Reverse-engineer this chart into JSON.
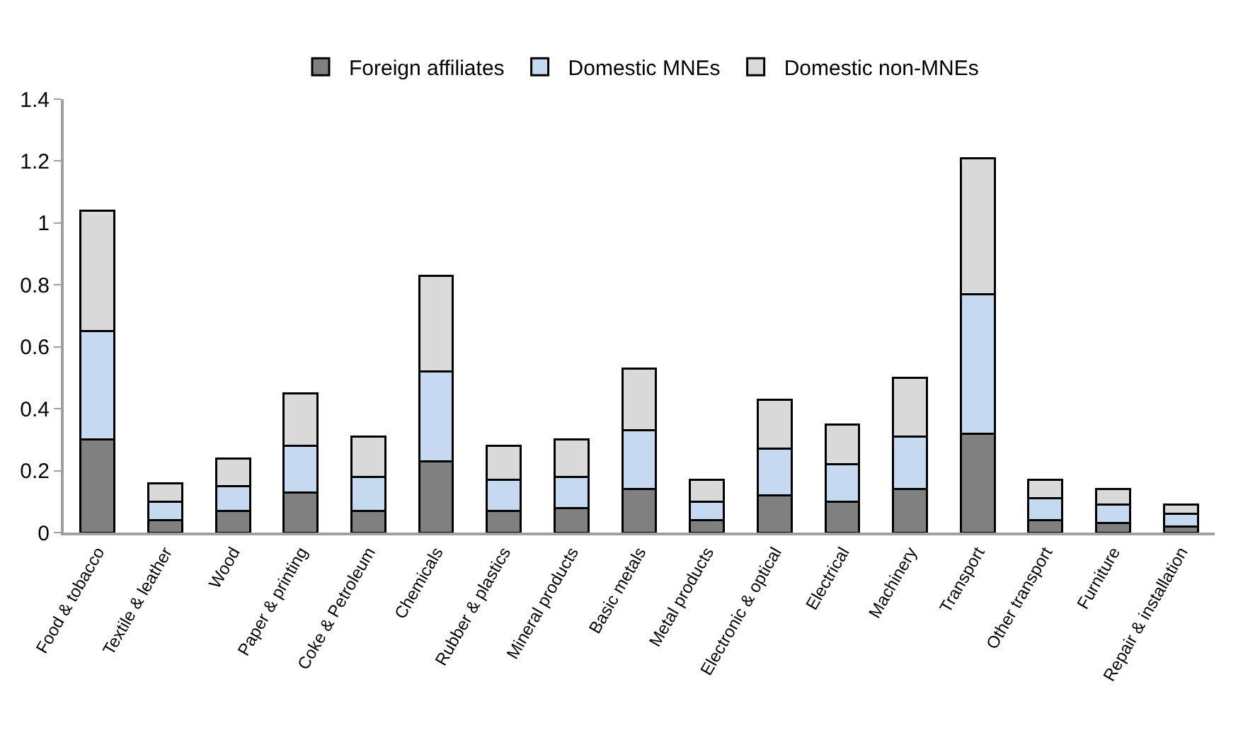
{
  "chart_data": {
    "type": "bar",
    "stacked": true,
    "categories": [
      "Food & tobacco",
      "Textile & leather",
      "Wood",
      "Paper & printing",
      "Coke & Petroleum",
      "Chemicals",
      "Rubber & plastics",
      "Mineral products",
      "Basic metals",
      "Metal products",
      "Electronic & optical",
      "Electrical",
      "Machinery",
      "Transport",
      "Other transport",
      "Furniture",
      "Repair & installation"
    ],
    "series": [
      {
        "name": "Foreign affiliates",
        "color": "#808080",
        "values": [
          0.3,
          0.04,
          0.07,
          0.13,
          0.07,
          0.23,
          0.07,
          0.08,
          0.14,
          0.04,
          0.12,
          0.1,
          0.14,
          0.32,
          0.04,
          0.03,
          0.02
        ]
      },
      {
        "name": "Domestic MNEs",
        "color": "#c5d9f1",
        "values": [
          0.35,
          0.06,
          0.08,
          0.15,
          0.11,
          0.29,
          0.1,
          0.1,
          0.19,
          0.06,
          0.15,
          0.12,
          0.17,
          0.45,
          0.07,
          0.06,
          0.04
        ]
      },
      {
        "name": "Domestic non-MNEs",
        "color": "#d9d9d9",
        "values": [
          0.39,
          0.06,
          0.09,
          0.17,
          0.13,
          0.31,
          0.11,
          0.12,
          0.2,
          0.07,
          0.16,
          0.13,
          0.19,
          0.44,
          0.06,
          0.05,
          0.03
        ]
      }
    ],
    "ylim": [
      0,
      1.4
    ],
    "yticks": [
      0,
      0.2,
      0.4,
      0.6,
      0.8,
      1,
      1.2,
      1.4
    ],
    "legend": "top"
  }
}
